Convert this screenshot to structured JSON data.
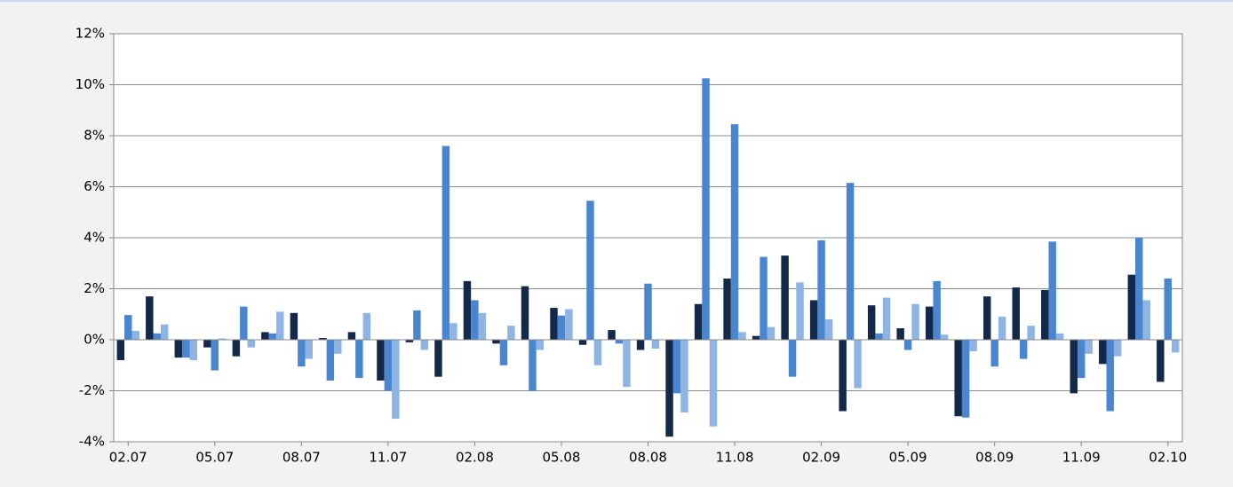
{
  "chart_data": {
    "type": "bar",
    "categories": [
      "02.07",
      null,
      null,
      "05.07",
      null,
      null,
      "08.07",
      null,
      null,
      "11.07",
      null,
      null,
      "02.08",
      null,
      null,
      "05.08",
      null,
      null,
      "08.08",
      null,
      null,
      "11.08",
      null,
      null,
      "02.09",
      null,
      null,
      "05.09",
      null,
      null,
      "08.09",
      null,
      null,
      "11.09",
      null,
      null,
      "02.10"
    ],
    "series": [
      {
        "color": "#14284a",
        "values": [
          -0.8,
          1.7,
          -0.7,
          -0.3,
          -0.65,
          0.3,
          1.05,
          0.07,
          0.3,
          -1.6,
          -0.1,
          -1.45,
          2.3,
          -0.15,
          2.1,
          1.25,
          -0.2,
          0.38,
          -0.4,
          -3.8,
          1.4,
          2.4,
          0.15,
          3.3,
          1.55,
          -2.8,
          1.35,
          0.45,
          1.3,
          -3.0,
          1.7,
          2.05,
          1.95,
          -2.1,
          -0.95,
          2.55,
          -1.65
        ]
      },
      {
        "color": "#4a86d0",
        "values": [
          0.97,
          0.25,
          -0.7,
          -1.2,
          1.3,
          0.25,
          -1.05,
          -1.6,
          -1.5,
          -2.0,
          1.15,
          7.6,
          1.55,
          -1.0,
          -2.0,
          0.95,
          5.45,
          -0.15,
          2.2,
          -2.1,
          10.25,
          8.45,
          3.25,
          -1.45,
          3.9,
          6.15,
          0.25,
          -0.4,
          2.3,
          -3.05,
          -1.05,
          -0.75,
          3.85,
          -1.5,
          -2.8,
          4.0,
          2.4
        ]
      },
      {
        "color": "#8db4e2",
        "values": [
          0.35,
          0.6,
          -0.8,
          0.05,
          -0.3,
          1.1,
          -0.75,
          -0.55,
          1.05,
          -3.1,
          -0.4,
          0.65,
          1.05,
          0.55,
          -0.4,
          1.2,
          -1.0,
          -1.85,
          -0.35,
          -2.85,
          -3.4,
          0.3,
          0.5,
          2.25,
          0.8,
          -1.9,
          1.65,
          1.4,
          0.2,
          -0.45,
          0.9,
          0.55,
          0.25,
          -0.55,
          -0.65,
          1.55,
          -0.5
        ]
      }
    ],
    "ylim": [
      -4,
      12
    ],
    "yticks": [
      {
        "value": -4,
        "label": "-4%"
      },
      {
        "value": -2,
        "label": "-2%"
      },
      {
        "value": 0,
        "label": "0%"
      },
      {
        "value": 2,
        "label": "2%"
      },
      {
        "value": 4,
        "label": "4%"
      },
      {
        "value": 6,
        "label": "6%"
      },
      {
        "value": 8,
        "label": "8%"
      },
      {
        "value": 10,
        "label": "10%"
      },
      {
        "value": 12,
        "label": "12%"
      }
    ],
    "grid": true
  }
}
